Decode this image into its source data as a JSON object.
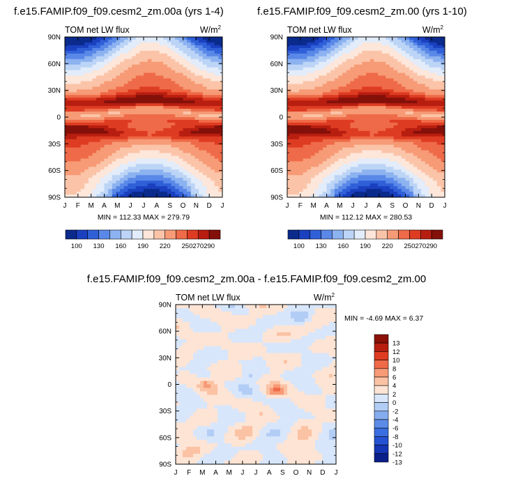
{
  "colors": {
    "absolute": [
      "#0a2a8c",
      "#1a40c0",
      "#3060d8",
      "#5a88e8",
      "#8cb2f0",
      "#bcd4f6",
      "#e2ecfa",
      "#fde6da",
      "#fbc4a8",
      "#f79a76",
      "#ef6a48",
      "#de3c22",
      "#b81e10",
      "#84100a"
    ],
    "difference": [
      "#0a1f8a",
      "#1436b4",
      "#2452d2",
      "#3a6ee0",
      "#5c8ce8",
      "#86acf0",
      "#b2cdf5",
      "#d8e6fb",
      "#fde4d4",
      "#fbc2a4",
      "#f79a76",
      "#ef6a48",
      "#de3c22",
      "#b81e10",
      "#8a1008"
    ]
  },
  "chart_data": [
    {
      "type": "heatmap",
      "title": "f.e15.FAMIP.f09_f09.cesm2_zm.00a (yrs 1-4)",
      "left_label": "TOM net LW flux",
      "units": "W/m",
      "units_sup": "2",
      "x_ticks": [
        "J",
        "F",
        "M",
        "A",
        "M",
        "J",
        "J",
        "A",
        "S",
        "O",
        "N",
        "D",
        "J"
      ],
      "y_ticks": [
        "90N",
        "60N",
        "30N",
        "0",
        "30S",
        "60S",
        "90S"
      ],
      "min": 112.33,
      "max": 279.79,
      "stats_text": "MIN = 112.33 MAX = 279.79",
      "colorbar_labels": [
        "100",
        "130",
        "160",
        "190",
        "220",
        "250",
        "270",
        "290"
      ]
    },
    {
      "type": "heatmap",
      "title": "f.e15.FAMIP.f09_f09.cesm2_zm.00 (yrs 1-10)",
      "left_label": "TOM net LW flux",
      "units": "W/m",
      "units_sup": "2",
      "x_ticks": [
        "J",
        "F",
        "M",
        "A",
        "M",
        "J",
        "J",
        "A",
        "S",
        "O",
        "N",
        "D",
        "J"
      ],
      "y_ticks": [
        "90N",
        "60N",
        "30N",
        "0",
        "30S",
        "60S",
        "90S"
      ],
      "min": 112.12,
      "max": 280.53,
      "stats_text": "MIN = 112.12 MAX = 280.53",
      "colorbar_labels": [
        "100",
        "130",
        "160",
        "190",
        "220",
        "250",
        "270",
        "290"
      ]
    },
    {
      "type": "heatmap",
      "title": "f.e15.FAMIP.f09_f09.cesm2_zm.00a - f.e15.FAMIP.f09_f09.cesm2_zm.00",
      "left_label": "TOM net LW flux",
      "units": "W/m",
      "units_sup": "2",
      "x_ticks": [
        "J",
        "F",
        "M",
        "A",
        "M",
        "J",
        "J",
        "A",
        "S",
        "O",
        "N",
        "D",
        "J"
      ],
      "y_ticks": [
        "90N",
        "60N",
        "30N",
        "0",
        "30S",
        "60S",
        "90S"
      ],
      "min": -4.69,
      "max": 6.37,
      "stats_text": "MIN =  -4.69 MAX =   6.37",
      "colorbar_labels": [
        "13",
        "12",
        "10",
        "8",
        "6",
        "4",
        "2",
        "0",
        "-2",
        "-4",
        "-6",
        "-8",
        "-10",
        "-12",
        "-13"
      ]
    }
  ]
}
